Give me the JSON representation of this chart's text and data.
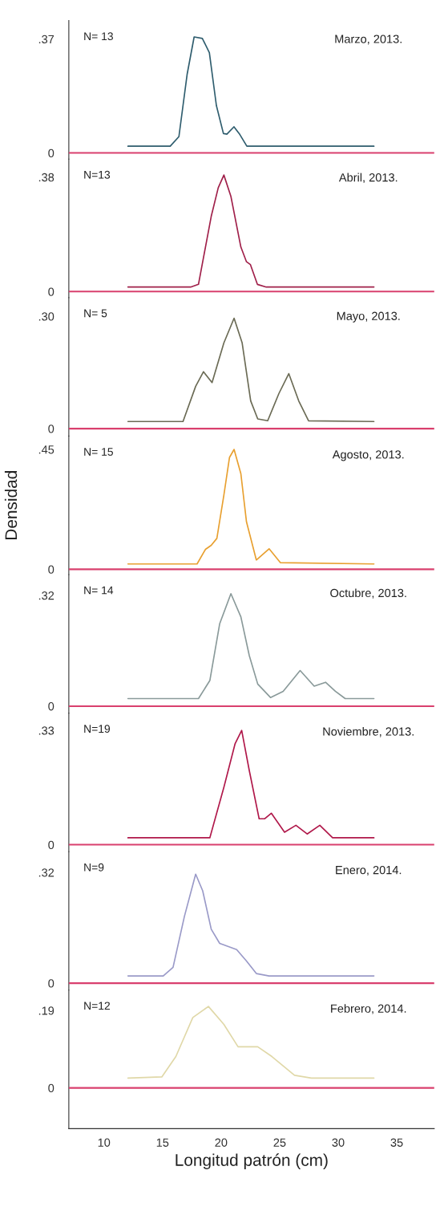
{
  "chart_data": [
    {
      "type": "line",
      "title": "Marzo, 2013.",
      "annotations": [
        "N= 13"
      ],
      "tick_labels": "y",
      "xlim": [
        7,
        38.2
      ],
      "ylim": [
        -0.02,
        0.43
      ],
      "yticks": [
        0,
        {
          "value": 0.37,
          "label": ".37"
        }
      ],
      "ref_lines": [
        {
          "axis": "y",
          "value": 0,
          "color": "#d9406e"
        }
      ],
      "x": [
        12.05,
        15.66,
        16.4,
        17.1,
        17.7,
        18.4,
        19.0,
        19.6,
        20.2,
        20.5,
        21.1,
        21.6,
        22.2,
        33.05
      ],
      "series": [
        {
          "color": "#2f5d6e",
          "values": [
            0.022,
            0.022,
            0.053,
            0.255,
            0.377,
            0.372,
            0.326,
            0.154,
            0.063,
            0.061,
            0.085,
            0.06,
            0.022,
            0.022
          ]
        }
      ]
    },
    {
      "type": "line",
      "title": "Abril, 2013.",
      "annotations": [
        "N=13"
      ],
      "tick_labels": "y",
      "xlim": [
        7,
        38.2
      ],
      "ylim": [
        -0.02,
        0.44
      ],
      "yticks": [
        0,
        {
          "value": 0.38,
          "label": ".38"
        }
      ],
      "ref_lines": [
        {
          "axis": "y",
          "value": 0,
          "color": "#d9406e"
        }
      ],
      "x": [
        12.05,
        17.4,
        18.07,
        19.16,
        19.76,
        20.24,
        20.84,
        21.69,
        22.17,
        22.5,
        23.1,
        23.86,
        33.05
      ],
      "series": [
        {
          "color": "#a0204a",
          "values": [
            0.015,
            0.015,
            0.024,
            0.25,
            0.345,
            0.387,
            0.316,
            0.148,
            0.099,
            0.09,
            0.024,
            0.015,
            0.015
          ]
        }
      ]
    },
    {
      "type": "line",
      "title": "Mayo, 2013.",
      "annotations": [
        "N= 5"
      ],
      "tick_labels": "y",
      "xlim": [
        7,
        38.2
      ],
      "ylim": [
        -0.02,
        0.35
      ],
      "yticks": [
        0,
        {
          "value": 0.3,
          "label": ".30"
        }
      ],
      "ref_lines": [
        {
          "axis": "y",
          "value": 0,
          "color": "#d9406e"
        }
      ],
      "x": [
        12.05,
        16.75,
        17.83,
        18.5,
        19.23,
        20.24,
        21.11,
        21.8,
        22.53,
        23.13,
        23.98,
        24.94,
        25.78,
        26.63,
        27.47,
        33.05
      ],
      "series": [
        {
          "color": "#6b6b55",
          "values": [
            0.019,
            0.019,
            0.113,
            0.152,
            0.123,
            0.229,
            0.295,
            0.229,
            0.074,
            0.026,
            0.021,
            0.094,
            0.147,
            0.074,
            0.021,
            0.019
          ]
        }
      ]
    },
    {
      "type": "line",
      "title": "Agosto, 2013.",
      "ylabel": "Densidad",
      "annotations": [
        "N= 15"
      ],
      "tick_labels": "y",
      "xlim": [
        7,
        38.2
      ],
      "ylim": [
        -0.02,
        0.5
      ],
      "yticks": [
        0,
        {
          "value": 0.45,
          "label": ".45"
        }
      ],
      "ref_lines": [
        {
          "axis": "y",
          "value": 0,
          "color": "#d9406e"
        }
      ],
      "x": [
        12.05,
        17.95,
        18.67,
        19.16,
        19.64,
        20.24,
        20.72,
        21.11,
        21.69,
        22.17,
        23.01,
        24.1,
        25.06,
        33.05
      ],
      "series": [
        {
          "color": "#e8a030",
          "values": [
            0.02,
            0.02,
            0.075,
            0.09,
            0.116,
            0.279,
            0.42,
            0.45,
            0.359,
            0.178,
            0.035,
            0.077,
            0.025,
            0.02
          ]
        }
      ]
    },
    {
      "type": "line",
      "title": "Octubre, 2013.",
      "annotations": [
        "N= 14"
      ],
      "tick_labels": "y",
      "xlim": [
        7,
        38.2
      ],
      "ylim": [
        -0.02,
        0.38
      ],
      "yticks": [
        0,
        {
          "value": 0.32,
          "label": ".32"
        }
      ],
      "ref_lines": [
        {
          "axis": "y",
          "value": 0,
          "color": "#d9406e"
        }
      ],
      "x": [
        12.05,
        18.07,
        19.04,
        19.88,
        20.84,
        21.69,
        22.41,
        23.13,
        24.22,
        25.3,
        26.75,
        27.95,
        28.92,
        29.76,
        30.6,
        33.05
      ],
      "series": [
        {
          "color": "#8a9a9a",
          "values": [
            0.022,
            0.022,
            0.074,
            0.238,
            0.325,
            0.258,
            0.146,
            0.064,
            0.025,
            0.043,
            0.103,
            0.058,
            0.069,
            0.043,
            0.022,
            0.022
          ]
        }
      ]
    },
    {
      "type": "line",
      "title": "Noviembre, 2013.",
      "annotations": [
        "N=19"
      ],
      "tick_labels": "y",
      "xlim": [
        7,
        38.2
      ],
      "ylim": [
        -0.02,
        0.38
      ],
      "yticks": [
        0,
        {
          "value": 0.33,
          "label": ".33"
        }
      ],
      "ref_lines": [
        {
          "axis": "y",
          "value": 0,
          "color": "#d9406e"
        }
      ],
      "x": [
        12.05,
        19.04,
        20.24,
        21.2,
        21.76,
        22.41,
        23.25,
        23.73,
        24.29,
        25.42,
        26.39,
        27.35,
        28.43,
        29.52,
        33.05
      ],
      "series": [
        {
          "color": "#b0184a",
          "values": [
            0.02,
            0.02,
            0.166,
            0.292,
            0.33,
            0.214,
            0.075,
            0.075,
            0.091,
            0.036,
            0.056,
            0.031,
            0.056,
            0.02,
            0.02
          ]
        }
      ]
    },
    {
      "type": "line",
      "title": "Enero, 2014.",
      "annotations": [
        "N=9"
      ],
      "tick_labels": "y",
      "xlim": [
        7,
        38.2
      ],
      "ylim": [
        -0.02,
        0.38
      ],
      "yticks": [
        0,
        {
          "value": 0.32,
          "label": ".32"
        }
      ],
      "ref_lines": [
        {
          "axis": "y",
          "value": 0,
          "color": "#d9406e"
        }
      ],
      "x": [
        12.05,
        15.06,
        15.9,
        16.87,
        17.83,
        18.43,
        19.16,
        19.88,
        21.33,
        22.17,
        23.01,
        24.1,
        33.05
      ],
      "series": [
        {
          "color": "#9a9ac8",
          "values": [
            0.021,
            0.021,
            0.046,
            0.193,
            0.315,
            0.267,
            0.156,
            0.115,
            0.097,
            0.064,
            0.028,
            0.021,
            0.021
          ]
        }
      ]
    },
    {
      "type": "line",
      "title": "Febrero, 2014.",
      "xlabel": "Longitud patrón (cm)",
      "annotations": [
        "N=12"
      ],
      "xlim": [
        7,
        38.2
      ],
      "xticks": [
        10,
        15,
        20,
        25,
        30,
        35
      ],
      "ylim": [
        -0.1,
        0.24
      ],
      "yticks": [
        0,
        {
          "value": 0.19,
          "label": ".19"
        }
      ],
      "ref_lines": [
        {
          "axis": "y",
          "value": 0,
          "color": "#d9406e"
        }
      ],
      "x": [
        12.05,
        14.94,
        16.14,
        17.59,
        18.92,
        20.24,
        21.45,
        23.13,
        24.34,
        26.27,
        27.71,
        33.05
      ],
      "series": [
        {
          "color": "#e0d8a8",
          "values": [
            0.024,
            0.027,
            0.077,
            0.173,
            0.2,
            0.156,
            0.101,
            0.101,
            0.077,
            0.031,
            0.024,
            0.024
          ]
        }
      ]
    }
  ]
}
